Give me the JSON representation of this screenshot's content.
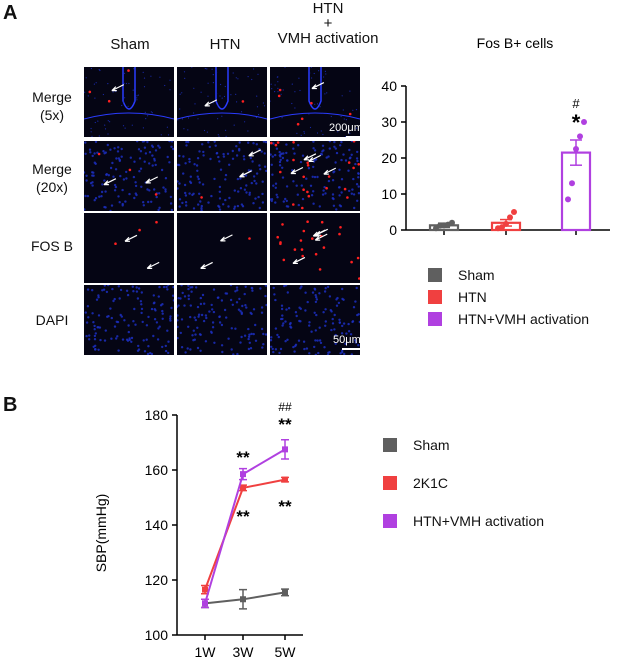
{
  "panel_a": {
    "letter": "A",
    "columns": [
      "Sham",
      "HTN",
      "HTN\n+\nVMH activation"
    ],
    "rows": [
      "Merge\n(5x)",
      "Merge\n(20x)",
      "FOS B",
      "DAPI"
    ],
    "scalebar_5x": "200μm",
    "scalebar_20x": "50μm"
  },
  "panel_b": {
    "letter": "B"
  },
  "colors": {
    "sham": "#5f5f5f",
    "htn": "#f04040",
    "vmh": "#b040e0",
    "micro_bg": "#050514",
    "dapi": "#1c2fc0",
    "fos": "#ff2020"
  },
  "chart_data": [
    {
      "type": "bar",
      "title": "Fos B+ cells",
      "categories": [
        "Sham",
        "HTN",
        "HTN+VMH activation"
      ],
      "values": [
        1.3,
        2.0,
        21.5
      ],
      "errors": [
        0.6,
        0.9,
        3.5
      ],
      "points": [
        [
          0.5,
          1.2,
          1.3,
          1.5,
          2.0
        ],
        [
          0.5,
          0.8,
          1.7,
          3.5,
          5.0
        ],
        [
          8.5,
          13.0,
          22.5,
          26.0,
          30.0
        ]
      ],
      "annotations": [
        {
          "category": "HTN+VMH activation",
          "text": "#"
        },
        {
          "category": "HTN+VMH activation",
          "text": "*"
        }
      ],
      "ylim": [
        0,
        40
      ],
      "yticks": [
        0,
        10,
        20,
        30,
        40
      ],
      "legend": {
        "position": "below",
        "entries": [
          {
            "label": "Sham",
            "color": "#5f5f5f"
          },
          {
            "label": "HTN",
            "color": "#f04040"
          },
          {
            "label": "HTN+VMH activation",
            "color": "#b040e0"
          }
        ]
      }
    },
    {
      "type": "line",
      "ylabel": "SBP(mmHg)",
      "x": [
        "1W",
        "3W",
        "5W"
      ],
      "ylim": [
        100,
        180
      ],
      "yticks": [
        100,
        120,
        140,
        160,
        180
      ],
      "series": [
        {
          "name": "Sham",
          "color": "#5f5f5f",
          "values": [
            111.5,
            113,
            115.5
          ],
          "errors": [
            1.5,
            3.5,
            1.2
          ]
        },
        {
          "name": "2K1C",
          "color": "#f04040",
          "values": [
            116.5,
            153.5,
            156.5
          ],
          "errors": [
            1.5,
            1.0,
            0.8
          ]
        },
        {
          "name": "HTN+VMH activation",
          "color": "#b040e0",
          "values": [
            111.5,
            158.5,
            167.5
          ],
          "errors": [
            1.5,
            2.0,
            3.5
          ]
        }
      ],
      "annotations": [
        {
          "x": "3W",
          "text": "**",
          "placement": "above"
        },
        {
          "x": "3W",
          "text": "**",
          "placement": "below"
        },
        {
          "x": "5W",
          "text": "##",
          "placement": "above-top"
        },
        {
          "x": "5W",
          "text": "**",
          "placement": "above"
        },
        {
          "x": "5W",
          "text": "**",
          "placement": "below"
        }
      ],
      "legend": {
        "position": "right",
        "entries": [
          {
            "label": "Sham",
            "color": "#5f5f5f"
          },
          {
            "label": "2K1C",
            "color": "#f04040"
          },
          {
            "label": "HTN+VMH activation",
            "color": "#b040e0"
          }
        ]
      }
    }
  ]
}
